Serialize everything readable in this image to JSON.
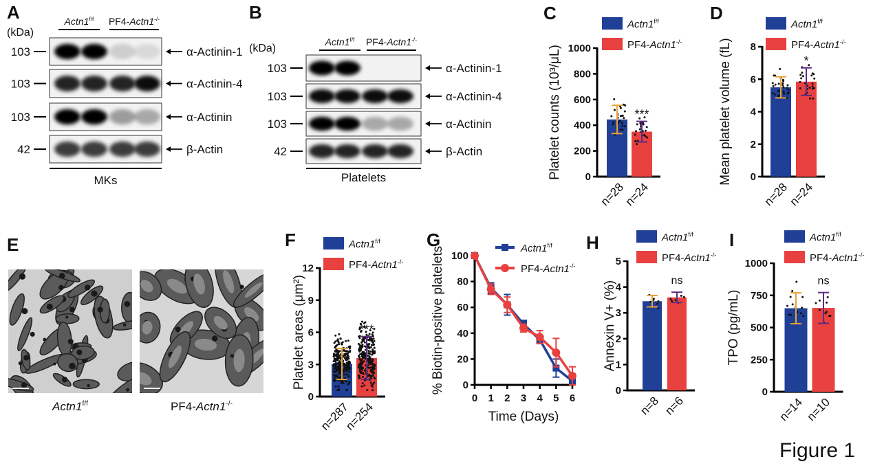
{
  "figure_label": "Figure 1",
  "genotypes": {
    "wt": {
      "prefix": "",
      "gene": "Actn1",
      "sup": "f/f"
    },
    "ko": {
      "prefix": "PF4-",
      "gene": "Actn1",
      "sup": "-/-"
    }
  },
  "colors": {
    "wt": "#203f97",
    "ko": "#e8413f",
    "wt_error": "#e6a33a",
    "ko_error": "#5b2c83"
  },
  "panel_A": {
    "letter": "A",
    "kda": "(kDa)",
    "markers": [
      "103",
      "103",
      "103",
      "42"
    ],
    "proteins": [
      "α-Actinin-1",
      "α-Actinin-4",
      "α-Actinin",
      "β-Actin"
    ],
    "sample": "MKs",
    "band_intensity": [
      [
        1,
        1,
        0.15,
        0.1
      ],
      [
        0.85,
        0.85,
        0.85,
        0.95
      ],
      [
        1,
        1,
        0.35,
        0.3
      ],
      [
        0.75,
        0.75,
        0.75,
        0.75
      ]
    ]
  },
  "panel_B": {
    "letter": "B",
    "kda": "(kDa)",
    "markers": [
      "103",
      "103",
      "103",
      "42"
    ],
    "proteins": [
      "α-Actinin-1",
      "α-Actinin-4",
      "α-Actinin",
      "β-Actin"
    ],
    "sample": "Platelets",
    "band_intensity": [
      [
        1,
        1,
        0,
        0
      ],
      [
        0.95,
        0.95,
        0.95,
        0.95
      ],
      [
        1,
        1,
        0.3,
        0.3
      ],
      [
        0.85,
        0.85,
        0.85,
        0.85
      ]
    ]
  },
  "panel_E": {
    "letter": "E"
  },
  "chart_data": [
    {
      "panel": "C",
      "type": "bar",
      "ylabel": "Platelet counts (10³/μL)",
      "ylim": [
        0,
        1000
      ],
      "yticks": [
        "0",
        "200",
        "400",
        "600",
        "800",
        "1000"
      ],
      "categories": [
        "n=28",
        "n=24"
      ],
      "values": [
        445,
        350
      ],
      "sd": [
        110,
        80
      ],
      "n": [
        28,
        24
      ],
      "significance": "***",
      "legend": "top"
    },
    {
      "panel": "D",
      "type": "bar",
      "ylabel": "Mean platelet volume (fL)",
      "ylim": [
        0,
        8
      ],
      "yticks": [
        "0",
        "2",
        "4",
        "6",
        "8"
      ],
      "categories": [
        "n=28",
        "n=24"
      ],
      "values": [
        5.5,
        5.85
      ],
      "sd": [
        0.65,
        0.85
      ],
      "n": [
        28,
        24
      ],
      "significance": "*",
      "legend": "top"
    },
    {
      "panel": "F",
      "type": "bar",
      "ylabel": "Platelet areas (μm²)",
      "ylim": [
        0,
        12
      ],
      "yticks": [
        "0",
        "3",
        "6",
        "9",
        "12"
      ],
      "categories": [
        "n=287",
        "n=254"
      ],
      "values": [
        3.05,
        3.6
      ],
      "sd": [
        1.45,
        2.0
      ],
      "n": [
        287,
        254
      ],
      "significance": "***",
      "legend": "top"
    },
    {
      "panel": "G",
      "type": "line",
      "ylabel": "% Biotin-positive platelets",
      "xlabel": "Time (Days)",
      "ylim": [
        0,
        100
      ],
      "yticks": [
        "0",
        "20",
        "40",
        "60",
        "80",
        "100"
      ],
      "x": [
        "0",
        "1",
        "2",
        "3",
        "4",
        "5",
        "6"
      ],
      "series": [
        {
          "values": [
            100,
            75,
            62,
            47,
            35,
            13,
            3
          ],
          "sd": [
            1,
            4,
            8,
            3,
            3,
            7,
            2
          ],
          "marker": "square"
        },
        {
          "values": [
            100,
            74,
            62,
            44,
            37,
            25,
            7
          ],
          "sd": [
            1,
            4,
            6,
            3,
            5,
            11,
            7
          ],
          "marker": "circle"
        }
      ],
      "legend": "top-right"
    },
    {
      "panel": "H",
      "type": "bar",
      "ylabel": "Annexin V+ (%)",
      "ylim": [
        0,
        5
      ],
      "yticks": [
        "0",
        "1",
        "2",
        "3",
        "4",
        "5"
      ],
      "categories": [
        "n=8",
        "n=6"
      ],
      "values": [
        3.45,
        3.6
      ],
      "sd": [
        0.22,
        0.2
      ],
      "n": [
        8,
        6
      ],
      "significance": "ns",
      "legend": "top"
    },
    {
      "panel": "I",
      "type": "bar",
      "ylabel": "TPO (pg/mL)",
      "ylim": [
        0,
        1000
      ],
      "yticks": [
        "0",
        "250",
        "500",
        "750",
        "1000"
      ],
      "categories": [
        "n=14",
        "n=10"
      ],
      "values": [
        650,
        652
      ],
      "sd": [
        120,
        120
      ],
      "n": [
        14,
        10
      ],
      "significance": "ns",
      "legend": "top"
    }
  ]
}
